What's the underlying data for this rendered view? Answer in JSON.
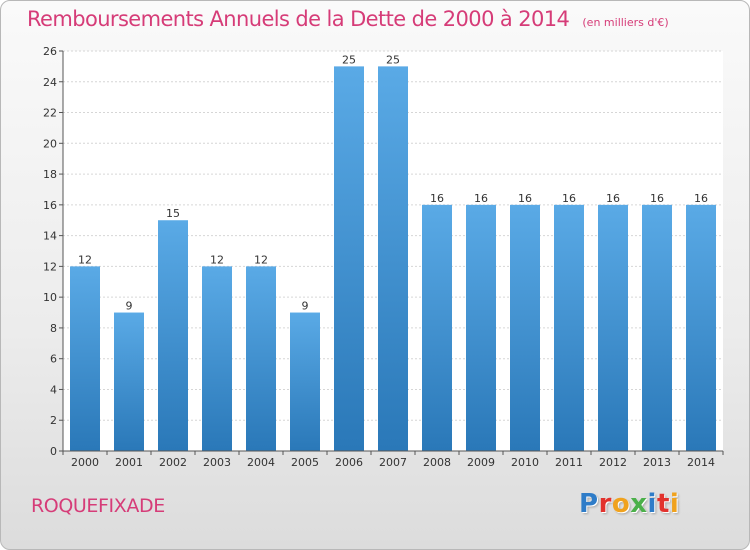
{
  "title": "Remboursements Annuels de la Dette de 2000 à 2014",
  "title_unit": "(en milliers d'€)",
  "commune": "ROQUEFIXADE",
  "logo": {
    "letters": [
      "P",
      "r",
      "o",
      "x",
      "i",
      "t",
      "i"
    ],
    "colors": [
      "#2e7cc8",
      "#e2322d",
      "#f0a21e",
      "#4bb04a",
      "#2e7cc8",
      "#e2322d",
      "#f0a21e"
    ]
  },
  "colors": {
    "title": "#d63c78",
    "bar_light": "#5aaae6",
    "bar_dark": "#2a78b8"
  },
  "chart_data": {
    "type": "bar",
    "title": "Remboursements Annuels de la Dette de 2000 à 2014",
    "categories": [
      "2000",
      "2001",
      "2002",
      "2003",
      "2004",
      "2005",
      "2006",
      "2007",
      "2008",
      "2009",
      "2010",
      "2011",
      "2012",
      "2013",
      "2014"
    ],
    "values": [
      12,
      9,
      15,
      12,
      12,
      9,
      25,
      25,
      16,
      16,
      16,
      16,
      16,
      16,
      16
    ],
    "data_labels": [
      "12",
      "9",
      "15",
      "12",
      "12",
      "9",
      "25",
      "25",
      "16",
      "16",
      "16",
      "16",
      "16",
      "16",
      "16"
    ],
    "ylim": [
      0,
      26
    ],
    "yticks": [
      0,
      2,
      4,
      6,
      8,
      10,
      12,
      14,
      16,
      18,
      20,
      22,
      24,
      26
    ],
    "grid": true,
    "xlabel": "",
    "ylabel": ""
  }
}
